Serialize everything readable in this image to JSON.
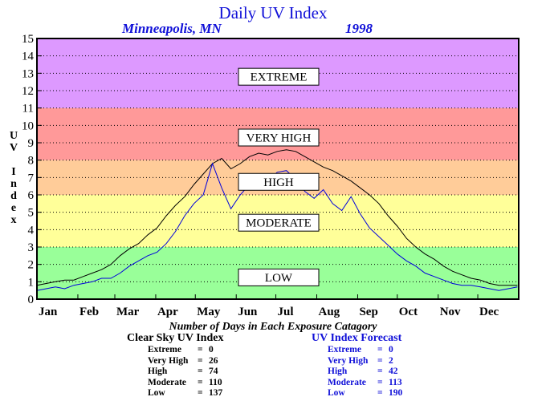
{
  "title": "Daily UV Index",
  "subtitle": {
    "location": "Minneapolis, MN",
    "year": "1998"
  },
  "ylabel_letters": [
    "U",
    "V",
    "",
    "I",
    "n",
    "d",
    "e",
    "x"
  ],
  "stats_heading": "Number of Days in Each Exposure Catagory",
  "clear_sky": {
    "title": "Clear Sky UV Index",
    "rows": [
      {
        "label": "Extreme",
        "eq": "=",
        "value": "0"
      },
      {
        "label": "Very High",
        "eq": "=",
        "value": "26"
      },
      {
        "label": "High",
        "eq": "=",
        "value": "74"
      },
      {
        "label": "Moderate",
        "eq": "=",
        "value": "110"
      },
      {
        "label": "Low",
        "eq": "=",
        "value": "137"
      }
    ]
  },
  "forecast": {
    "title": "UV Index Forecast",
    "rows": [
      {
        "label": "Extreme",
        "eq": "=",
        "value": "0"
      },
      {
        "label": "Very High",
        "eq": "=",
        "value": "2"
      },
      {
        "label": "High",
        "eq": "=",
        "value": "42"
      },
      {
        "label": "Moderate",
        "eq": "=",
        "value": "113"
      },
      {
        "label": "Low",
        "eq": "=",
        "value": "190"
      }
    ]
  },
  "chart_data": {
    "type": "line",
    "title": "Daily UV Index",
    "xlabel": "",
    "ylabel": "UV Index",
    "xlim": [
      0,
      365
    ],
    "ylim": [
      0,
      15
    ],
    "grid": true,
    "yticks": [
      0,
      1,
      2,
      3,
      4,
      5,
      6,
      7,
      8,
      9,
      10,
      11,
      12,
      13,
      14,
      15
    ],
    "months": [
      {
        "label": "Jan",
        "day": 0
      },
      {
        "label": "Feb",
        "day": 31
      },
      {
        "label": "Mar",
        "day": 59
      },
      {
        "label": "Apr",
        "day": 90
      },
      {
        "label": "May",
        "day": 120
      },
      {
        "label": "Jun",
        "day": 151
      },
      {
        "label": "Jul",
        "day": 181
      },
      {
        "label": "Aug",
        "day": 212
      },
      {
        "label": "Sep",
        "day": 243
      },
      {
        "label": "Oct",
        "day": 273
      },
      {
        "label": "Nov",
        "day": 304
      },
      {
        "label": "Dec",
        "day": 334
      }
    ],
    "bands": [
      {
        "label": "LOW",
        "from": 0,
        "to": 3,
        "color": "#99ff99",
        "label_y": 1.25
      },
      {
        "label": "MODERATE",
        "from": 3,
        "to": 6,
        "color": "#ffff99",
        "label_y": 4.4
      },
      {
        "label": "HIGH",
        "from": 6,
        "to": 8,
        "color": "#ffcc99",
        "label_y": 6.75
      },
      {
        "label": "VERY HIGH",
        "from": 8,
        "to": 11,
        "color": "#ff9999",
        "label_y": 9.3
      },
      {
        "label": "EXTREME",
        "from": 11,
        "to": 15,
        "color": "#dd99ff",
        "label_y": 12.8
      }
    ],
    "series": [
      {
        "name": "Clear Sky UV Index",
        "color": "#000000",
        "x": [
          0,
          7,
          14,
          21,
          28,
          35,
          42,
          49,
          56,
          63,
          70,
          77,
          84,
          91,
          98,
          105,
          112,
          119,
          126,
          133,
          140,
          147,
          154,
          161,
          168,
          175,
          182,
          189,
          196,
          203,
          210,
          217,
          224,
          231,
          238,
          245,
          252,
          259,
          266,
          273,
          280,
          287,
          294,
          301,
          308,
          315,
          322,
          329,
          336,
          343,
          350,
          357,
          364
        ],
        "y": [
          0.8,
          0.9,
          1.0,
          1.1,
          1.1,
          1.3,
          1.5,
          1.7,
          2.0,
          2.5,
          2.9,
          3.2,
          3.7,
          4.1,
          4.8,
          5.4,
          5.9,
          6.6,
          7.2,
          7.8,
          8.1,
          7.5,
          7.8,
          8.2,
          8.4,
          8.3,
          8.5,
          8.6,
          8.5,
          8.2,
          7.9,
          7.6,
          7.4,
          7.1,
          6.8,
          6.4,
          6.0,
          5.5,
          4.8,
          4.2,
          3.5,
          3.0,
          2.6,
          2.3,
          1.9,
          1.6,
          1.4,
          1.2,
          1.1,
          0.9,
          0.8,
          0.8,
          0.8
        ]
      },
      {
        "name": "UV Index Forecast",
        "color": "#0000dd",
        "x": [
          0,
          7,
          14,
          21,
          28,
          35,
          42,
          49,
          56,
          63,
          70,
          77,
          84,
          91,
          98,
          105,
          112,
          119,
          126,
          133,
          140,
          147,
          154,
          161,
          168,
          175,
          182,
          189,
          196,
          203,
          210,
          217,
          224,
          231,
          238,
          245,
          252,
          259,
          266,
          273,
          280,
          287,
          294,
          301,
          308,
          315,
          322,
          329,
          336,
          343,
          350,
          357,
          364
        ],
        "y": [
          0.5,
          0.6,
          0.7,
          0.6,
          0.8,
          0.9,
          1.0,
          1.2,
          1.2,
          1.5,
          1.9,
          2.2,
          2.5,
          2.7,
          3.2,
          3.9,
          4.8,
          5.5,
          6.0,
          7.8,
          6.4,
          5.2,
          6.0,
          6.6,
          7.2,
          6.8,
          7.3,
          7.4,
          6.9,
          6.2,
          5.8,
          6.3,
          5.5,
          5.1,
          5.9,
          4.9,
          4.1,
          3.6,
          3.1,
          2.6,
          2.2,
          1.9,
          1.5,
          1.3,
          1.1,
          0.9,
          0.8,
          0.8,
          0.7,
          0.6,
          0.5,
          0.6,
          0.7
        ]
      }
    ]
  }
}
